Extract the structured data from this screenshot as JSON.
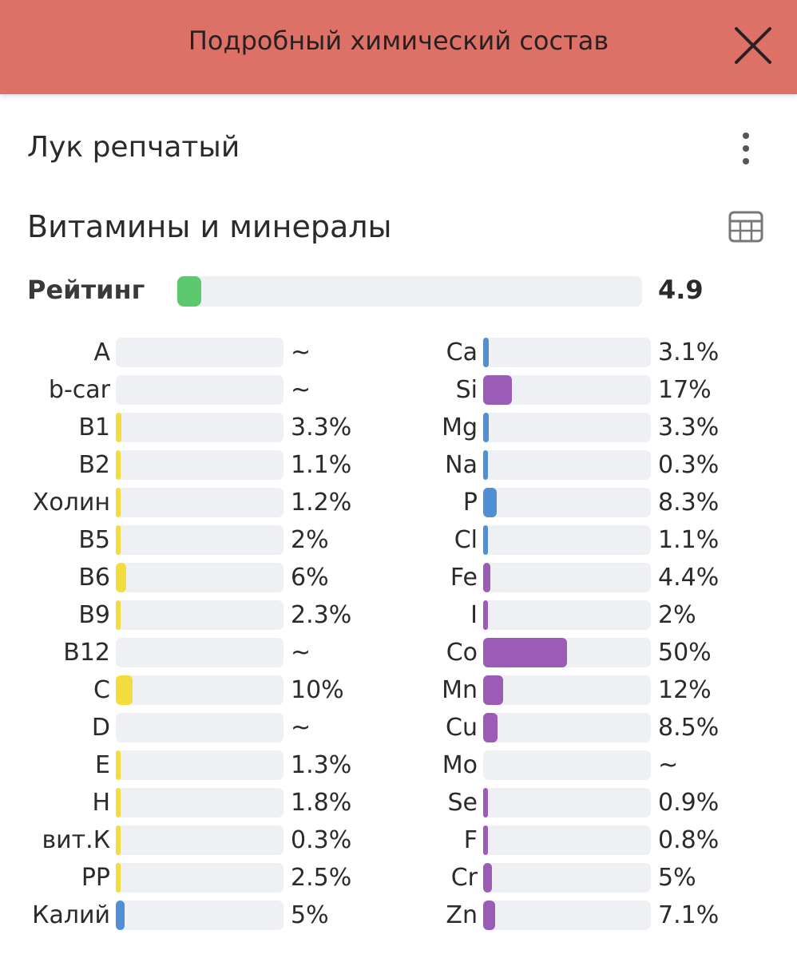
{
  "header": {
    "title": "Подробный химический состав"
  },
  "food": {
    "name": "Лук репчатый"
  },
  "section": {
    "title": "Витамины и минералы"
  },
  "rating": {
    "label": "Рейтинг",
    "value": "4.9",
    "fraction": 0.049,
    "color": "#5cc96f"
  },
  "colors": {
    "vitamin": "#f3dd3e",
    "mineral_blue": "#4f8fd6",
    "mineral_purple": "#9b5cb8",
    "track": "#eff0f3",
    "header_bg": "#de7167"
  },
  "vitamins": [
    {
      "name": "A",
      "value": "~",
      "percent": 0,
      "color": "#f3dd3e"
    },
    {
      "name": "b-car",
      "value": "~",
      "percent": 0,
      "color": "#f3dd3e"
    },
    {
      "name": "B1",
      "value": "3.3%",
      "percent": 3.3,
      "color": "#f3dd3e"
    },
    {
      "name": "B2",
      "value": "1.1%",
      "percent": 1.1,
      "color": "#f3dd3e"
    },
    {
      "name": "Холин",
      "value": "1.2%",
      "percent": 1.2,
      "color": "#f3dd3e"
    },
    {
      "name": "B5",
      "value": "2%",
      "percent": 2,
      "color": "#f3dd3e"
    },
    {
      "name": "B6",
      "value": "6%",
      "percent": 6,
      "color": "#f3dd3e"
    },
    {
      "name": "B9",
      "value": "2.3%",
      "percent": 2.3,
      "color": "#f3dd3e"
    },
    {
      "name": "B12",
      "value": "~",
      "percent": 0,
      "color": "#f3dd3e"
    },
    {
      "name": "C",
      "value": "10%",
      "percent": 10,
      "color": "#f3dd3e"
    },
    {
      "name": "D",
      "value": "~",
      "percent": 0,
      "color": "#f3dd3e"
    },
    {
      "name": "E",
      "value": "1.3%",
      "percent": 1.3,
      "color": "#f3dd3e"
    },
    {
      "name": "H",
      "value": "1.8%",
      "percent": 1.8,
      "color": "#f3dd3e"
    },
    {
      "name": "вит.К",
      "value": "0.3%",
      "percent": 0.3,
      "color": "#f3dd3e"
    },
    {
      "name": "PP",
      "value": "2.5%",
      "percent": 2.5,
      "color": "#f3dd3e"
    },
    {
      "name": "Калий",
      "value": "5%",
      "percent": 5,
      "color": "#4f8fd6"
    }
  ],
  "minerals": [
    {
      "name": "Ca",
      "value": "3.1%",
      "percent": 3.1,
      "color": "#4f8fd6"
    },
    {
      "name": "Si",
      "value": "17%",
      "percent": 17,
      "color": "#9b5cb8"
    },
    {
      "name": "Mg",
      "value": "3.3%",
      "percent": 3.3,
      "color": "#4f8fd6"
    },
    {
      "name": "Na",
      "value": "0.3%",
      "percent": 0.3,
      "color": "#4f8fd6"
    },
    {
      "name": "P",
      "value": "8.3%",
      "percent": 8.3,
      "color": "#4f8fd6"
    },
    {
      "name": "Cl",
      "value": "1.1%",
      "percent": 1.1,
      "color": "#4f8fd6"
    },
    {
      "name": "Fe",
      "value": "4.4%",
      "percent": 4.4,
      "color": "#9b5cb8"
    },
    {
      "name": "I",
      "value": "2%",
      "percent": 2,
      "color": "#9b5cb8"
    },
    {
      "name": "Co",
      "value": "50%",
      "percent": 50,
      "color": "#9b5cb8"
    },
    {
      "name": "Mn",
      "value": "12%",
      "percent": 12,
      "color": "#9b5cb8"
    },
    {
      "name": "Cu",
      "value": "8.5%",
      "percent": 8.5,
      "color": "#9b5cb8"
    },
    {
      "name": "Mo",
      "value": "~",
      "percent": 0,
      "color": "#9b5cb8"
    },
    {
      "name": "Se",
      "value": "0.9%",
      "percent": 0.9,
      "color": "#9b5cb8"
    },
    {
      "name": "F",
      "value": "0.8%",
      "percent": 0.8,
      "color": "#9b5cb8"
    },
    {
      "name": "Cr",
      "value": "5%",
      "percent": 5,
      "color": "#9b5cb8"
    },
    {
      "name": "Zn",
      "value": "7.1%",
      "percent": 7.1,
      "color": "#9b5cb8"
    }
  ]
}
